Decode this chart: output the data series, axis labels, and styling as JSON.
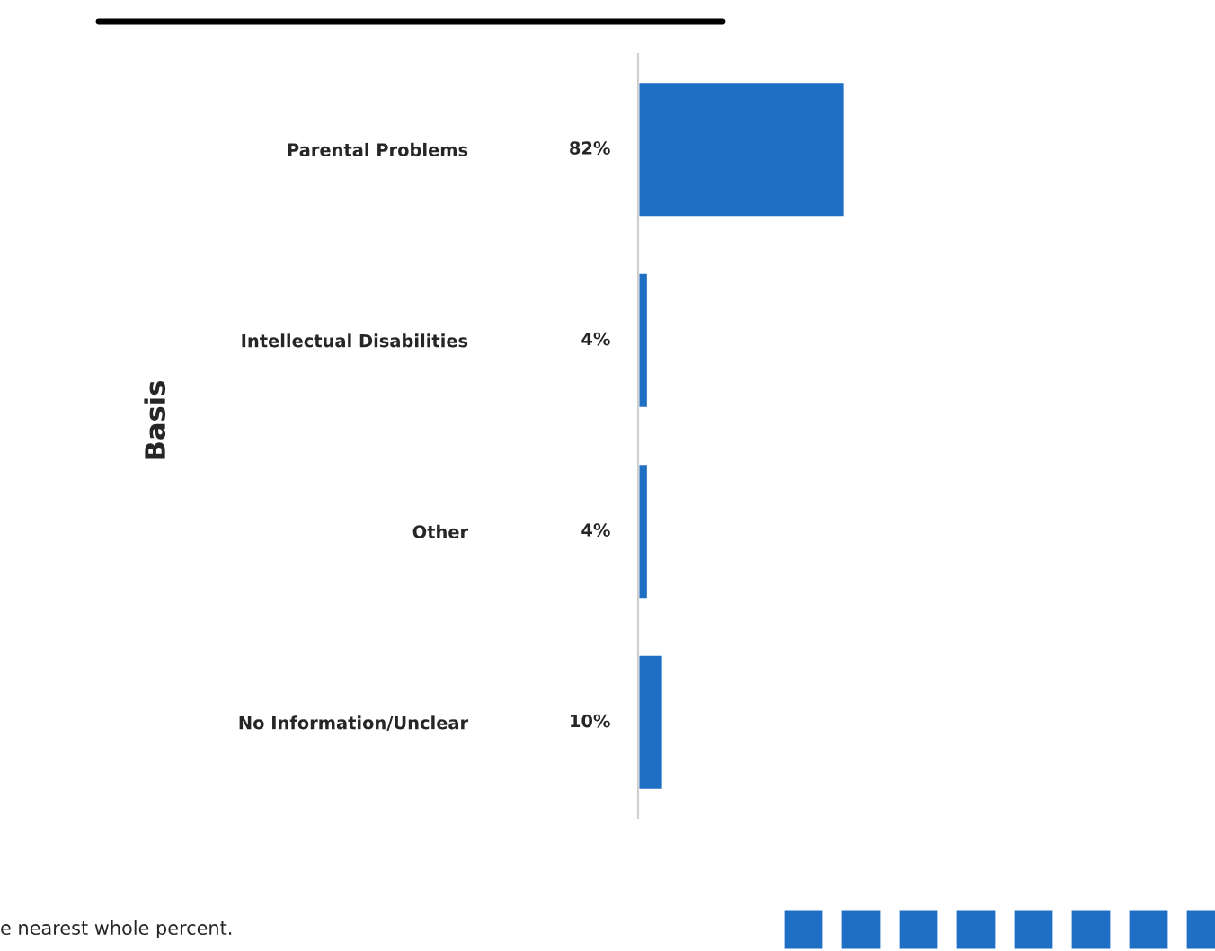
{
  "chart_data": {
    "type": "bar",
    "orientation": "horizontal",
    "ylabel": "Basis",
    "categories": [
      "Parental Problems",
      "Intellectual Disabilities",
      "Other",
      "No Information/Unclear"
    ],
    "values": [
      82,
      4,
      4,
      10
    ],
    "value_labels": [
      "82%",
      "4%",
      "4%",
      "10%"
    ],
    "color": "#1f6fc5",
    "grid": false,
    "legend": false,
    "annotations": [
      "e nearest whole percent."
    ]
  }
}
